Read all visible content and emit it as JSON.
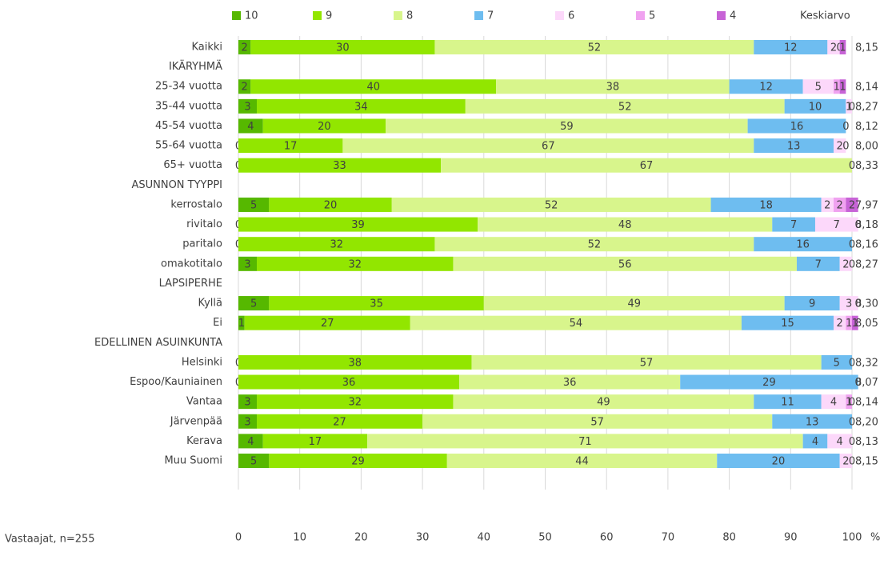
{
  "chart_data": {
    "type": "stacked_bar_horizontal",
    "categories": [
      "Kaikki",
      "IKÄRYHMÄ",
      "25-34 vuotta",
      "35-44 vuotta",
      "45-54 vuotta",
      "55-64 vuotta",
      "65+ vuotta",
      "ASUNNON TYYPPI",
      "kerrostalo",
      "rivitalo",
      "paritalo",
      "omakotitalo",
      "LAPSIPERHE",
      "Kyllä",
      "Ei",
      "EDELLINEN ASUINKUNTA",
      "Helsinki",
      "Espoo/Kauniainen",
      "Vantaa",
      "Järvenpää",
      "Kerava",
      "Muu Suomi"
    ],
    "series": [
      {
        "name": "10",
        "color": "#56b800",
        "values": [
          2,
          null,
          2,
          3,
          4,
          0,
          0,
          null,
          5,
          0,
          0,
          3,
          null,
          5,
          1,
          null,
          0,
          0,
          3,
          3,
          4,
          5
        ]
      },
      {
        "name": "9",
        "color": "#92e600",
        "values": [
          30,
          null,
          40,
          34,
          20,
          17,
          33,
          null,
          20,
          39,
          32,
          32,
          null,
          35,
          27,
          null,
          38,
          36,
          32,
          27,
          17,
          29
        ]
      },
      {
        "name": "8",
        "color": "#d8f58c",
        "values": [
          52,
          null,
          38,
          52,
          59,
          67,
          67,
          null,
          52,
          48,
          52,
          56,
          null,
          49,
          54,
          null,
          57,
          36,
          49,
          57,
          71,
          44
        ]
      },
      {
        "name": "7",
        "color": "#6ebdf0",
        "values": [
          12,
          null,
          12,
          10,
          16,
          13,
          0,
          null,
          18,
          7,
          16,
          7,
          null,
          9,
          15,
          null,
          5,
          29,
          11,
          13,
          4,
          20
        ]
      },
      {
        "name": "6",
        "color": "#fcd8fa",
        "values": [
          2,
          null,
          5,
          1,
          0,
          2,
          null,
          null,
          2,
          7,
          0,
          2,
          null,
          3,
          2,
          null,
          0,
          0,
          4,
          0,
          4,
          2
        ]
      },
      {
        "name": "5",
        "color": "#f0a2f0",
        "values": [
          0,
          null,
          1,
          0,
          null,
          0,
          null,
          null,
          2,
          0,
          null,
          0,
          null,
          0,
          1,
          null,
          null,
          null,
          1,
          null,
          0,
          0
        ]
      },
      {
        "name": "4",
        "color": "#c763d6",
        "values": [
          1,
          null,
          1,
          null,
          null,
          null,
          null,
          null,
          2,
          null,
          null,
          null,
          null,
          null,
          1,
          null,
          null,
          null,
          0,
          null,
          null,
          null
        ]
      }
    ],
    "mean": {
      "title": "Keskiarvo",
      "values": [
        8.15,
        null,
        8.14,
        8.27,
        8.12,
        8.0,
        8.33,
        null,
        7.97,
        8.18,
        8.16,
        8.27,
        null,
        8.3,
        8.05,
        null,
        8.32,
        8.07,
        8.14,
        8.2,
        8.13,
        8.15
      ],
      "value_labels": [
        "8,15",
        null,
        "8,14",
        "8,27",
        "8,12",
        "8,00",
        "8,33",
        null,
        "7,97",
        "8,18",
        "8,16",
        "8,27",
        null,
        "8,30",
        "8,05",
        null,
        "8,32",
        "8,07",
        "8,14",
        "8,20",
        "8,13",
        "8,15"
      ]
    },
    "xlim": [
      0,
      100
    ],
    "xticks": [
      0,
      10,
      20,
      30,
      40,
      50,
      60,
      70,
      80,
      90,
      100
    ],
    "x_label": "%",
    "note": "Vastaajat, n=255",
    "grid": true,
    "legend": "top"
  }
}
